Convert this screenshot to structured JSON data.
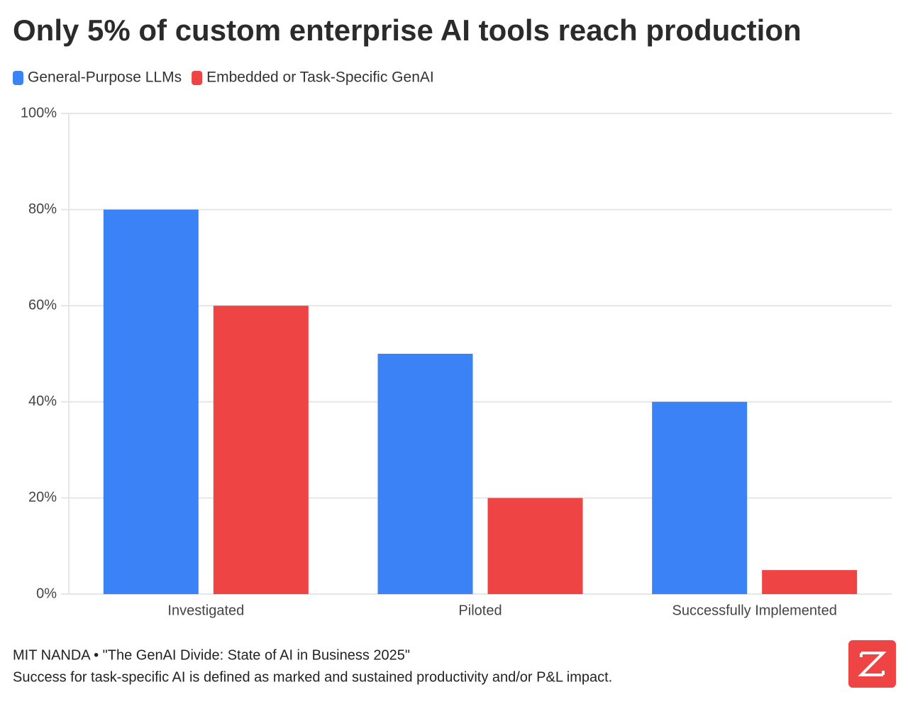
{
  "chart_data": {
    "type": "bar",
    "title": "Only 5% of custom enterprise AI tools reach production",
    "categories": [
      "Investigated",
      "Piloted",
      "Successfully Implemented"
    ],
    "series": [
      {
        "name": "General-Purpose LLMs",
        "color": "#3b82f6",
        "values": [
          80,
          50,
          40
        ]
      },
      {
        "name": "Embedded or Task-Specific GenAI",
        "color": "#ef4444",
        "values": [
          60,
          20,
          5
        ]
      }
    ],
    "ylim": [
      0,
      100
    ],
    "yticks": [
      {
        "value": 0,
        "label": "0%"
      },
      {
        "value": 20,
        "label": "20%"
      },
      {
        "value": 40,
        "label": "40%"
      },
      {
        "value": 60,
        "label": "60%"
      },
      {
        "value": 80,
        "label": "80%"
      },
      {
        "value": 100,
        "label": "100%"
      }
    ],
    "grid": true,
    "legend": "top-left",
    "source": "MIT NANDA • \"The GenAI Divide: State of AI in Business 2025\"",
    "note": "Success for task-specific AI is defined as marked and sustained productivity and/or P&L impact."
  }
}
